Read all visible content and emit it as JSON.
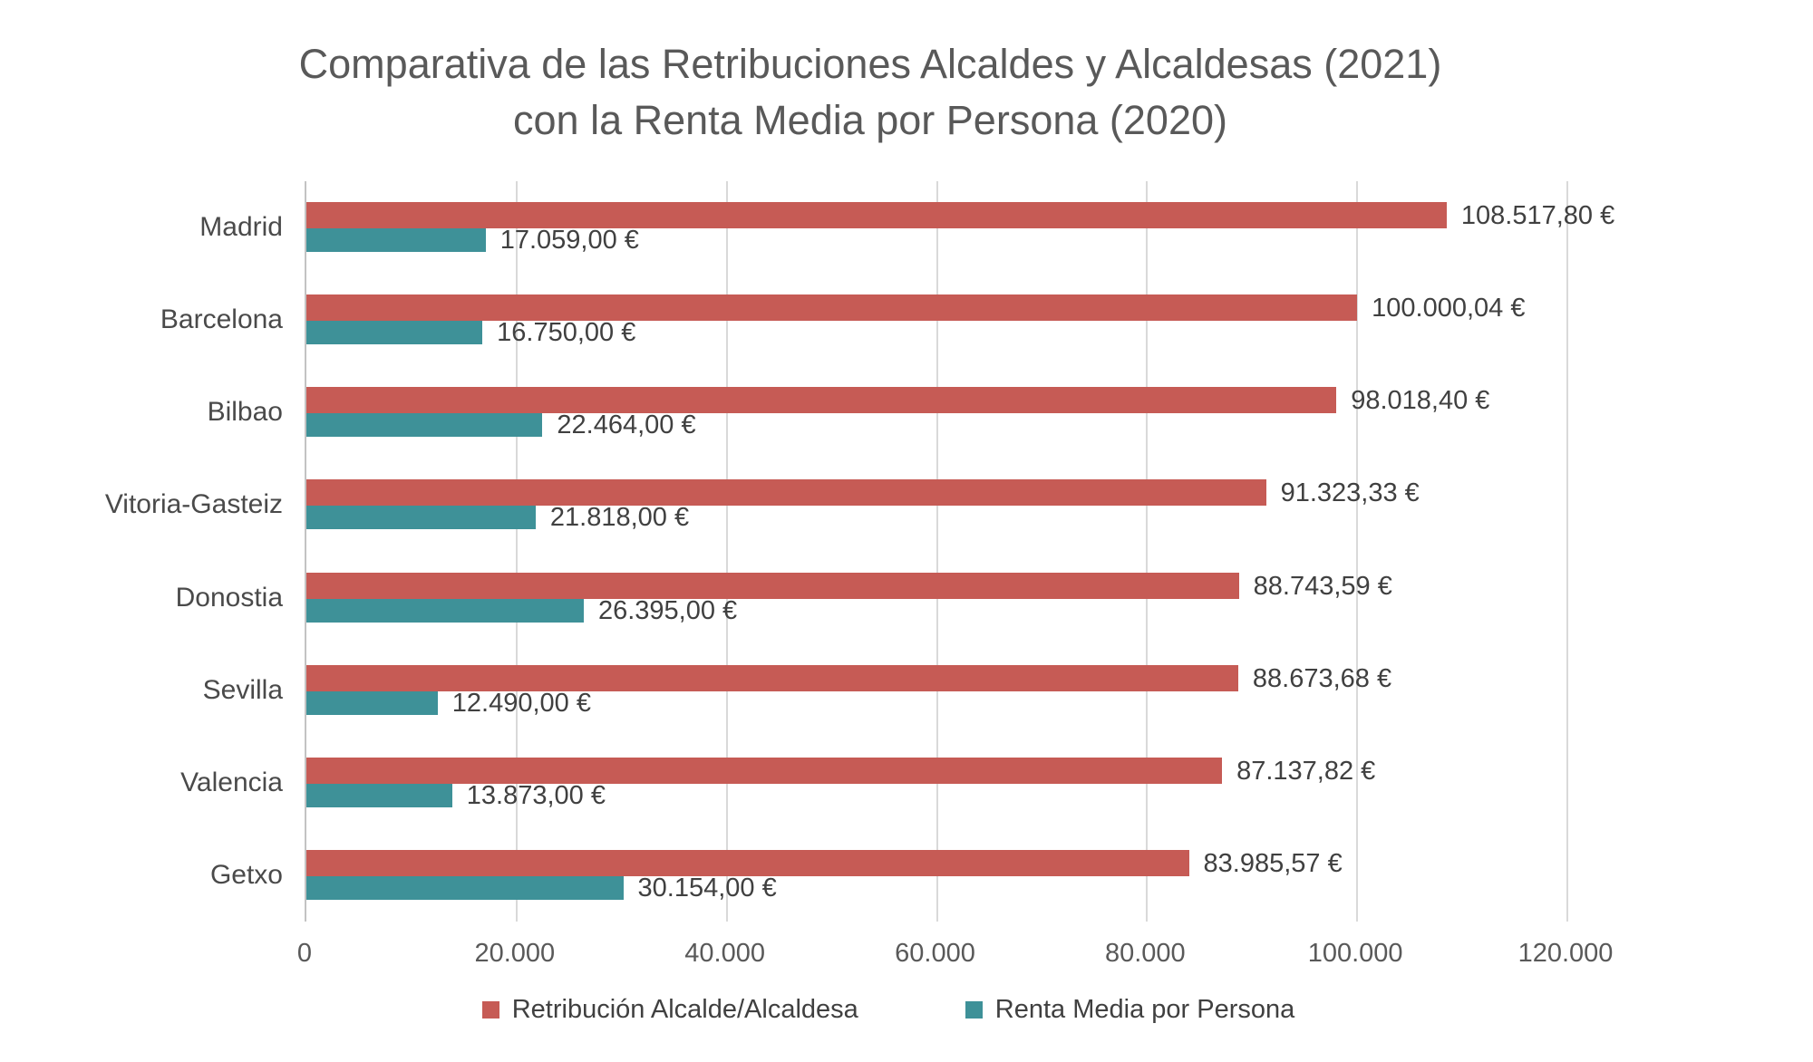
{
  "title": {
    "line1": "Comparativa de las Retribuciones Alcaldes y Alcaldesas (2021)",
    "line2": "con la Renta Media por Persona (2020)"
  },
  "chart_data": {
    "type": "bar",
    "orientation": "horizontal",
    "categories": [
      "Madrid",
      "Barcelona",
      "Bilbao",
      "Vitoria-Gasteiz",
      "Donostia",
      "Sevilla",
      "Valencia",
      "Getxo"
    ],
    "series": [
      {
        "name": "Retribución Alcalde/Alcaldesa",
        "color": "#c65b55",
        "values": [
          108517.8,
          100000.04,
          98018.4,
          91323.33,
          88743.59,
          88673.68,
          87137.82,
          83985.57
        ],
        "labels": [
          "108.517,80 €",
          "100.000,04 €",
          "98.018,40 €",
          "91.323,33 €",
          "88.743,59 €",
          "88.673,68 €",
          "87.137,82 €",
          "83.985,57 €"
        ]
      },
      {
        "name": "Renta Media por Persona",
        "color": "#3e9198",
        "values": [
          17059.0,
          16750.0,
          22464.0,
          21818.0,
          26395.0,
          12490.0,
          13873.0,
          30154.0
        ],
        "labels": [
          "17.059,00 €",
          "16.750,00 €",
          "22.464,00 €",
          "21.818,00 €",
          "26.395,00 €",
          "12.490,00 €",
          "13.873,00 €",
          "30.154,00 €"
        ]
      }
    ],
    "xlim": [
      0,
      120000
    ],
    "x_ticks": [
      0,
      20000,
      40000,
      60000,
      80000,
      100000,
      120000
    ],
    "x_tick_labels": [
      "0",
      "20.000",
      "40.000",
      "60.000",
      "80.000",
      "100.000",
      "120.000"
    ],
    "grid": true,
    "legend_position": "bottom",
    "title": "Comparativa de las Retribuciones Alcaldes y Alcaldesas (2021) con la Renta Media por Persona (2020)"
  },
  "colors": {
    "title_text": "#595959",
    "label_text": "#404040",
    "category_text": "#4a4a4a",
    "tick_text": "#595959",
    "gridline": "#d9d9d9",
    "axis_line": "#c3c3c3",
    "background": "#ffffff"
  }
}
